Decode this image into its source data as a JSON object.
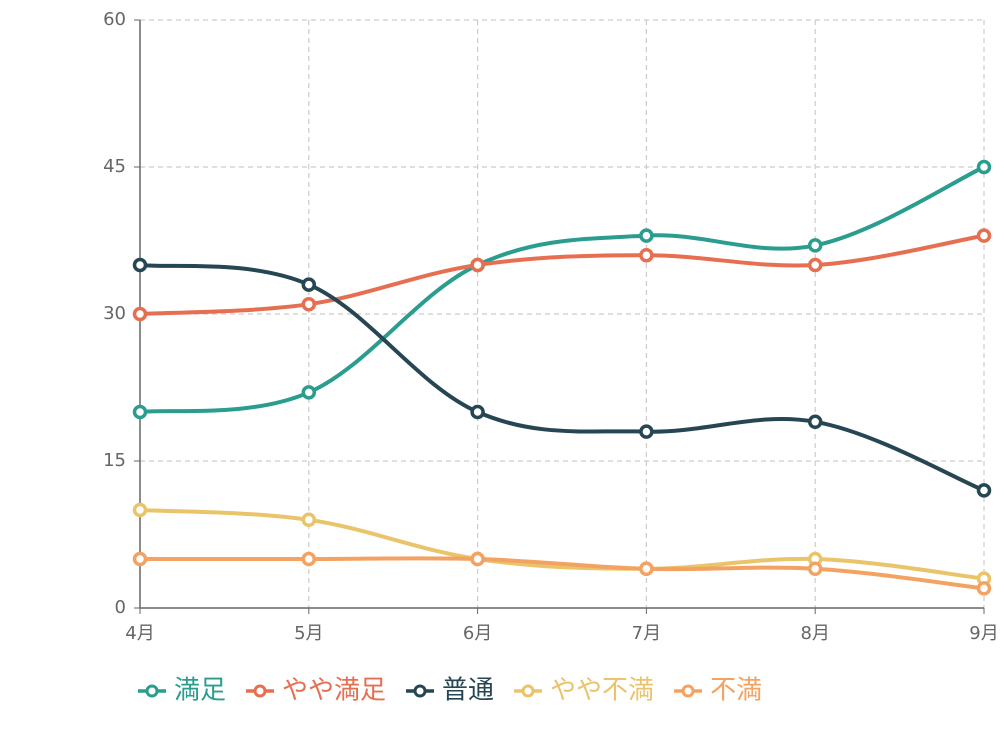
{
  "chart_data": {
    "type": "line",
    "categories": [
      "4月",
      "5月",
      "6月",
      "7月",
      "8月",
      "9月"
    ],
    "series": [
      {
        "name": "満足",
        "color": "#2a9d8f",
        "values": [
          20,
          22,
          35,
          38,
          37,
          45
        ]
      },
      {
        "name": "やや満足",
        "color": "#e76f51",
        "values": [
          30,
          31,
          35,
          36,
          35,
          38
        ]
      },
      {
        "name": "普通",
        "color": "#264653",
        "values": [
          35,
          33,
          20,
          18,
          19,
          12
        ]
      },
      {
        "name": "やや不満",
        "color": "#e9c46a",
        "values": [
          10,
          9,
          5,
          4,
          5,
          3
        ]
      },
      {
        "name": "不満",
        "color": "#f4a261",
        "values": [
          5,
          5,
          5,
          4,
          4,
          2
        ]
      }
    ],
    "ylim": [
      0,
      60
    ],
    "yticks": [
      0,
      15,
      30,
      45,
      60
    ],
    "grid": true,
    "smooth": true,
    "legend": "bottom"
  }
}
